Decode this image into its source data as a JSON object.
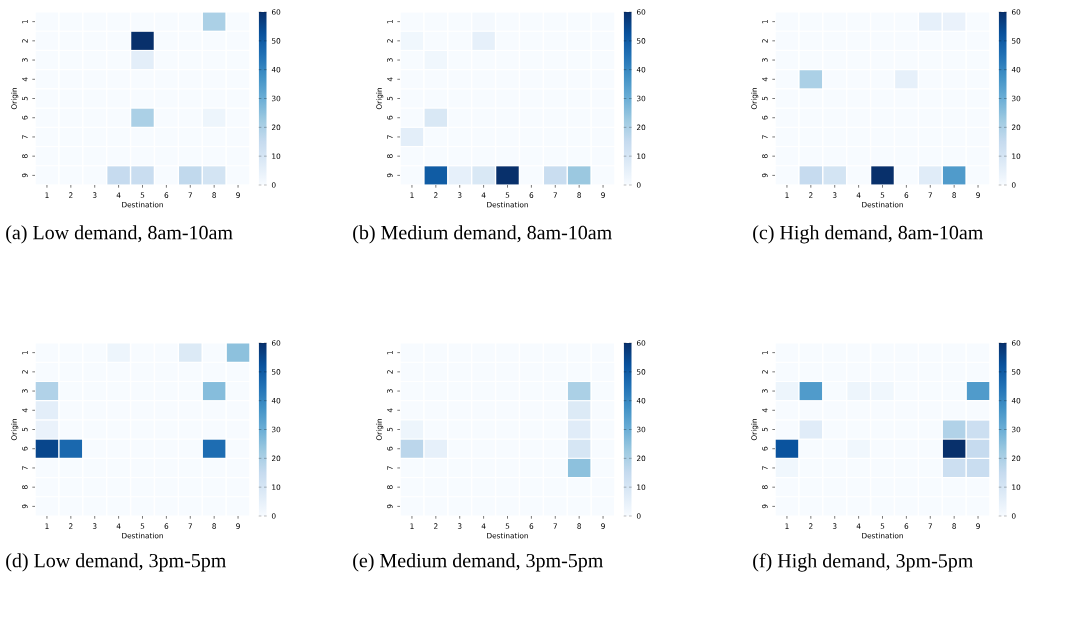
{
  "chart_data": [
    {
      "type": "heatmap",
      "title": "(a) Low demand, 8am-10am",
      "xlabel": "Destination",
      "ylabel": "Origin",
      "categories": [
        "1",
        "2",
        "3",
        "4",
        "5",
        "6",
        "7",
        "8",
        "9"
      ],
      "y_categories": [
        "1",
        "2",
        "3",
        "4",
        "5",
        "6",
        "7",
        "8",
        "9"
      ],
      "cells": [
        [
          0,
          0,
          0,
          0,
          0,
          0,
          0,
          20,
          0
        ],
        [
          0,
          0,
          0,
          0,
          60,
          0,
          0,
          0,
          0
        ],
        [
          0,
          0,
          0,
          0,
          6,
          0,
          0,
          0,
          0
        ],
        [
          0,
          0,
          0,
          0,
          0,
          0,
          0,
          0,
          0
        ],
        [
          0,
          0,
          0,
          0,
          0,
          0,
          0,
          0,
          0
        ],
        [
          0,
          0,
          0,
          0,
          20,
          0,
          0,
          3,
          0
        ],
        [
          0,
          0,
          0,
          0,
          0,
          0,
          0,
          0,
          0
        ],
        [
          0,
          0,
          0,
          0,
          0,
          0,
          0,
          0,
          0
        ],
        [
          0,
          0,
          0,
          15,
          14,
          0,
          16,
          11,
          0
        ]
      ],
      "clim": [
        0,
        60
      ],
      "cticks": [
        0,
        10,
        20,
        30,
        40,
        50,
        60
      ]
    },
    {
      "type": "heatmap",
      "title": "(b) Medium demand, 8am-10am",
      "xlabel": "Destination",
      "ylabel": "Origin",
      "categories": [
        "1",
        "2",
        "3",
        "4",
        "5",
        "6",
        "7",
        "8",
        "9"
      ],
      "y_categories": [
        "1",
        "2",
        "3",
        "4",
        "5",
        "6",
        "7",
        "8",
        "9"
      ],
      "cells": [
        [
          0,
          0,
          0,
          1,
          0,
          0,
          0,
          0,
          0
        ],
        [
          2,
          0,
          0,
          5,
          0,
          0,
          0,
          0,
          0
        ],
        [
          0,
          2,
          0,
          0,
          0,
          0,
          0,
          0,
          0
        ],
        [
          0,
          0,
          0,
          0,
          0,
          0,
          0,
          0,
          0
        ],
        [
          0,
          0,
          0,
          0,
          0,
          0,
          0,
          0,
          0
        ],
        [
          0,
          9,
          0,
          0,
          0,
          0,
          0,
          0,
          0
        ],
        [
          6,
          0,
          0,
          0,
          0,
          0,
          0,
          0,
          0
        ],
        [
          0,
          0,
          0,
          0,
          0,
          0,
          0,
          0,
          0
        ],
        [
          0,
          50,
          5,
          9,
          60,
          0,
          14,
          23,
          0
        ]
      ],
      "clim": [
        0,
        60
      ],
      "cticks": [
        0,
        10,
        20,
        30,
        40,
        50,
        60
      ]
    },
    {
      "type": "heatmap",
      "title": "(c) High demand, 8am-10am",
      "xlabel": "Destination",
      "ylabel": "Origin",
      "categories": [
        "1",
        "2",
        "3",
        "4",
        "5",
        "6",
        "7",
        "8",
        "9"
      ],
      "y_categories": [
        "1",
        "2",
        "3",
        "4",
        "5",
        "6",
        "7",
        "8",
        "9"
      ],
      "cells": [
        [
          0,
          0,
          0,
          0,
          0,
          0,
          5,
          4,
          0
        ],
        [
          0,
          0,
          0,
          0,
          0,
          0,
          0,
          0,
          0
        ],
        [
          0,
          0,
          0,
          0,
          0,
          0,
          0,
          0,
          0
        ],
        [
          0,
          20,
          0,
          0,
          0,
          5,
          0,
          0,
          0
        ],
        [
          0,
          0,
          0,
          0,
          0,
          0,
          0,
          0,
          0
        ],
        [
          0,
          0,
          0,
          0,
          0,
          0,
          0,
          0,
          0
        ],
        [
          0,
          0,
          0,
          0,
          0,
          0,
          0,
          0,
          0
        ],
        [
          0,
          0,
          0,
          0,
          0,
          0,
          0,
          0,
          0
        ],
        [
          0,
          15,
          11,
          0,
          60,
          0,
          7,
          35,
          0
        ]
      ],
      "clim": [
        0,
        60
      ],
      "cticks": [
        0,
        10,
        20,
        30,
        40,
        50,
        60
      ]
    },
    {
      "type": "heatmap",
      "title": "(d) Low demand, 3pm-5pm",
      "xlabel": "Destination",
      "ylabel": "Origin",
      "categories": [
        "1",
        "2",
        "3",
        "4",
        "5",
        "6",
        "7",
        "8",
        "9"
      ],
      "y_categories": [
        "1",
        "2",
        "3",
        "4",
        "5",
        "6",
        "7",
        "8",
        "9"
      ],
      "cells": [
        [
          0,
          0,
          0,
          3,
          0,
          0,
          8,
          0,
          25
        ],
        [
          0,
          0,
          0,
          0,
          0,
          0,
          0,
          0,
          0
        ],
        [
          19,
          0,
          0,
          0,
          0,
          0,
          0,
          26,
          0
        ],
        [
          6,
          0,
          0,
          0,
          0,
          0,
          0,
          0,
          0
        ],
        [
          4,
          0,
          0,
          0,
          0,
          0,
          0,
          0,
          0
        ],
        [
          55,
          47,
          0,
          0,
          0,
          0,
          0,
          46,
          0
        ],
        [
          0,
          0,
          0,
          0,
          0,
          0,
          0,
          0,
          0
        ],
        [
          0,
          0,
          0,
          0,
          0,
          0,
          0,
          0,
          0
        ],
        [
          0,
          0,
          0,
          0,
          0,
          0,
          0,
          0,
          0
        ]
      ],
      "clim": [
        0,
        60
      ],
      "cticks": [
        0,
        10,
        20,
        30,
        40,
        50,
        60
      ]
    },
    {
      "type": "heatmap",
      "title": "(e) Medium demand, 3pm-5pm",
      "xlabel": "Destination",
      "ylabel": "Origin",
      "categories": [
        "1",
        "2",
        "3",
        "4",
        "5",
        "6",
        "7",
        "8",
        "9"
      ],
      "y_categories": [
        "1",
        "2",
        "3",
        "4",
        "5",
        "6",
        "7",
        "8",
        "9"
      ],
      "cells": [
        [
          0,
          0,
          0,
          0,
          0,
          0,
          0,
          0,
          0
        ],
        [
          0,
          0,
          0,
          0,
          0,
          0,
          0,
          0,
          0
        ],
        [
          0,
          0,
          0,
          0,
          0,
          0,
          0,
          20,
          0
        ],
        [
          0,
          0,
          0,
          0,
          0,
          0,
          0,
          8,
          0
        ],
        [
          3,
          0,
          0,
          0,
          0,
          0,
          0,
          7,
          0
        ],
        [
          17,
          5,
          0,
          0,
          0,
          0,
          0,
          10,
          0
        ],
        [
          0,
          0,
          0,
          0,
          0,
          0,
          0,
          25,
          0
        ],
        [
          0,
          0,
          0,
          0,
          0,
          0,
          0,
          0,
          0
        ],
        [
          0,
          0,
          0,
          0,
          0,
          0,
          0,
          0,
          0
        ]
      ],
      "clim": [
        0,
        60
      ],
      "cticks": [
        0,
        10,
        20,
        30,
        40,
        50,
        60
      ]
    },
    {
      "type": "heatmap",
      "title": "(f) High demand, 3pm-5pm",
      "xlabel": "Destination",
      "ylabel": "Origin",
      "categories": [
        "1",
        "2",
        "3",
        "4",
        "5",
        "6",
        "7",
        "8",
        "9"
      ],
      "y_categories": [
        "1",
        "2",
        "3",
        "4",
        "5",
        "6",
        "7",
        "8",
        "9"
      ],
      "cells": [
        [
          0,
          0,
          0,
          0,
          0,
          0,
          0,
          0,
          0
        ],
        [
          0,
          0,
          0,
          0,
          0,
          0,
          0,
          0,
          0
        ],
        [
          3,
          35,
          0,
          3,
          2,
          0,
          0,
          0,
          35
        ],
        [
          0,
          0,
          0,
          0,
          0,
          0,
          0,
          0,
          0
        ],
        [
          0,
          7,
          0,
          0,
          0,
          0,
          0,
          19,
          13
        ],
        [
          52,
          0,
          0,
          2,
          0,
          0,
          0,
          60,
          15
        ],
        [
          2,
          0,
          0,
          0,
          0,
          0,
          0,
          13,
          14
        ],
        [
          0,
          0,
          0,
          0,
          0,
          0,
          0,
          0,
          0
        ],
        [
          0,
          0,
          0,
          0,
          0,
          0,
          0,
          0,
          0
        ]
      ],
      "clim": [
        0,
        60
      ],
      "cticks": [
        0,
        10,
        20,
        30,
        40,
        50,
        60
      ]
    }
  ]
}
